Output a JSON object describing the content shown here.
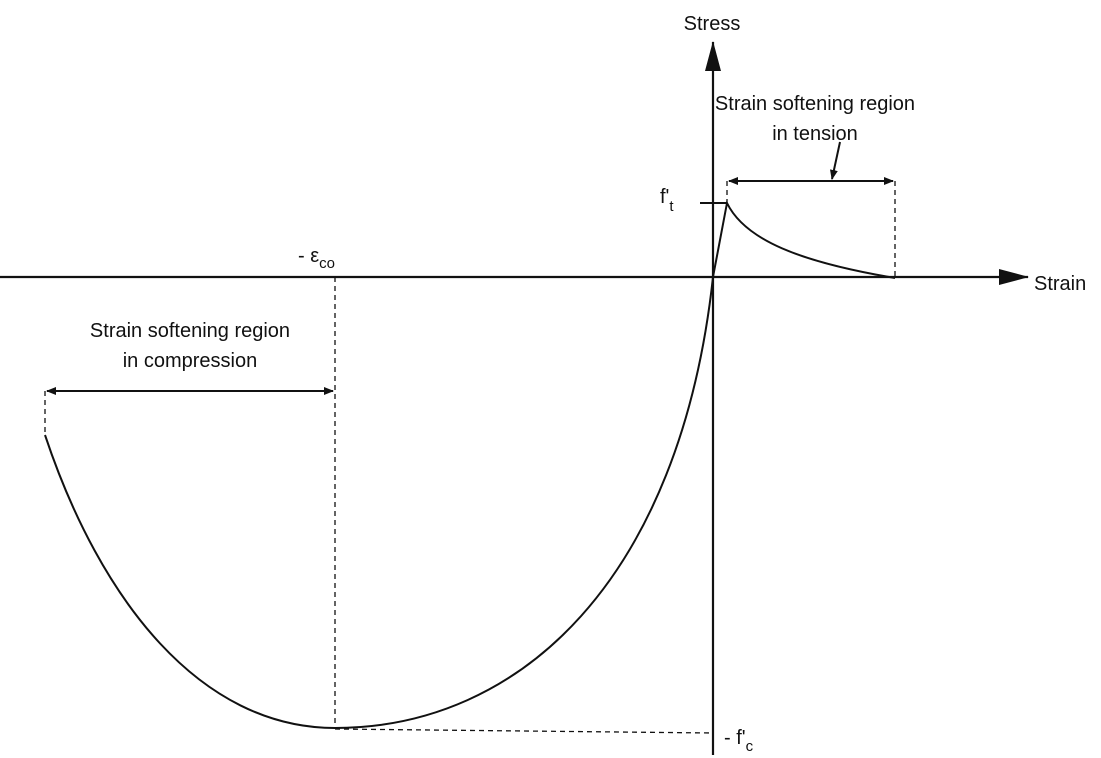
{
  "axes": {
    "y_label": "Stress",
    "x_label": "Strain"
  },
  "annotations": {
    "tension_region": [
      "Strain softening region",
      "in tension"
    ],
    "compression_region": [
      "Strain softening region",
      "in compression"
    ],
    "peak_tension": {
      "main": "f'",
      "sub": "t"
    },
    "peak_strain": {
      "main": "- ε",
      "sub": "co"
    },
    "peak_compression": {
      "main": "- f'",
      "sub": "c"
    }
  }
}
